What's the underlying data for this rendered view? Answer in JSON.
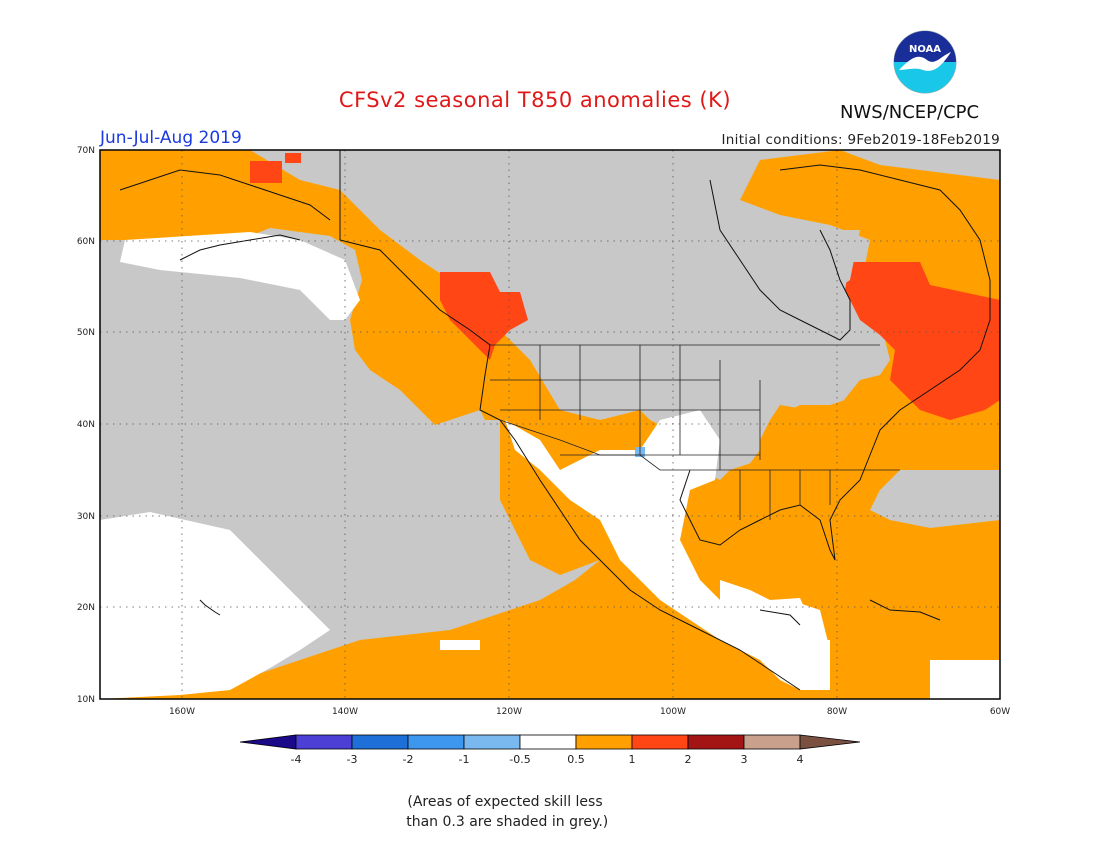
{
  "header": {
    "title": "CFSv2 seasonal T850 anomalies (K)",
    "agency": "NWS/NCEP/CPC",
    "logo_text": "NOAA",
    "season": "Jun-Jul-Aug 2019",
    "initial_conditions": "Initial conditions: 9Feb2019-18Feb2019"
  },
  "map": {
    "projection": "cylindrical equidistant",
    "lon_range": [
      "170W",
      "60W"
    ],
    "lat_range": [
      "10N",
      "70N"
    ],
    "lon_ticks": [
      "160W",
      "140W",
      "120W",
      "100W",
      "80W",
      "60W"
    ],
    "lat_ticks": [
      "10N",
      "20N",
      "30N",
      "40N",
      "50N",
      "60N",
      "70N"
    ],
    "grid": "dotted",
    "regions": [
      {
        "name": "Gulf of Alaska / NE Pacific",
        "category": "0.5 to 1"
      },
      {
        "name": "Pacific Northwest coast",
        "category": "1 to 2"
      },
      {
        "name": "Eastern Canada / Quebec",
        "category": "1 to 2"
      },
      {
        "name": "Eastern United States",
        "category": "0.5 to 1"
      },
      {
        "name": "Gulf of Mexico / Caribbean",
        "category": "0.5 to 1"
      },
      {
        "name": "Tropical eastern Pacific",
        "category": "0.5 to 1"
      },
      {
        "name": "Continental interior",
        "category": "low skill (grey)"
      }
    ]
  },
  "legend": {
    "labels": [
      "-4",
      "-3",
      "-2",
      "-1",
      "-0.5",
      "0.5",
      "1",
      "2",
      "3",
      "4"
    ],
    "colors": {
      "lt_-4": "#1a0a8a",
      "-4_-3": "#4b3fd6",
      "-3_-2": "#1f6fd9",
      "-2_-1": "#3d97ef",
      "-1_-0.5": "#7ab8f0",
      "-0.5_0.5": "#ffffff",
      "0.5_1": "#ffa000",
      "1_2": "#ff4614",
      "2_3": "#a31414",
      "3_4": "#c8a08c",
      "gt_4": "#7a5040"
    },
    "grey": "#c8c8c8"
  },
  "note": {
    "line1": "(Areas of expected skill less",
    "line2": " than 0.3 are shaded in grey.)"
  }
}
